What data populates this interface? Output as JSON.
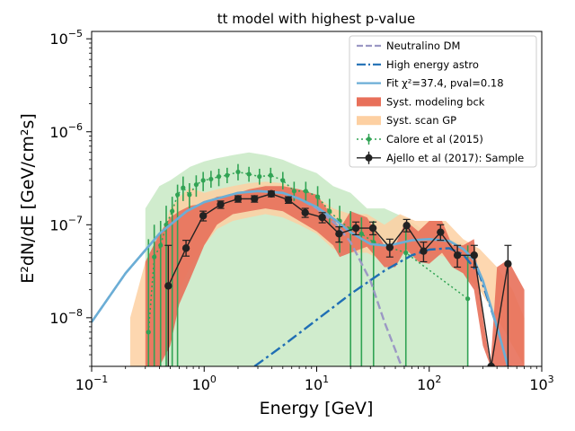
{
  "chart_data": {
    "type": "line",
    "title": "tt model with highest p-value",
    "xlabel": "Energy [GeV]",
    "ylabel": "E²dN/dE [GeV/cm²s]",
    "xscale": "log",
    "yscale": "log",
    "xlim": [
      0.1,
      1000
    ],
    "ylim": [
      3e-09,
      1.2e-05
    ],
    "x_ticks": [
      {
        "value": 0.1,
        "base": "10",
        "exp": "−1"
      },
      {
        "value": 1,
        "base": "10",
        "exp": "0"
      },
      {
        "value": 10,
        "base": "10",
        "exp": "1"
      },
      {
        "value": 100,
        "base": "10",
        "exp": "2"
      },
      {
        "value": 1000,
        "base": "10",
        "exp": "3"
      }
    ],
    "y_ticks": [
      {
        "value": 1e-08,
        "base": "10",
        "exp": "−8"
      },
      {
        "value": 1e-07,
        "base": "10",
        "exp": "−7"
      },
      {
        "value": 1e-06,
        "base": "10",
        "exp": "−6"
      },
      {
        "value": 1e-05,
        "base": "10",
        "exp": "−5"
      }
    ],
    "legend": {
      "position": "top-right",
      "entries": [
        {
          "label": "Neutralino DM",
          "color": "#9b98c4",
          "style": "dashed-line"
        },
        {
          "label": "High energy astro",
          "color": "#1f6eb4",
          "style": "dashdot-line"
        },
        {
          "label": "Fit χ²=37.4, pval=0.18",
          "color": "#6baed6",
          "style": "solid-line"
        },
        {
          "label": "Syst. modeling bck",
          "color": "#e8705a",
          "style": "patch"
        },
        {
          "label": "Syst. scan GP",
          "color": "#fdd0a2",
          "style": "patch"
        },
        {
          "label": "Calore et al (2015)",
          "color": "#31a354",
          "style": "dotted-errorbar"
        },
        {
          "label": "Ajello et al (2017): Sample",
          "color": "#222222",
          "style": "errorbar"
        }
      ]
    },
    "series": [
      {
        "name": "Neutralino DM",
        "color": "#9b98c4",
        "x": [
          0.1,
          0.2,
          0.4,
          0.7,
          1.0,
          2.0,
          3.0,
          5.0,
          7.0,
          10.0,
          15.0,
          20.0,
          30.0,
          40.0,
          50.0,
          55.0,
          60.0
        ],
        "y": [
          9e-09,
          3e-08,
          8e-08,
          1.4e-07,
          1.75e-07,
          2.2e-07,
          2.3e-07,
          2.2e-07,
          1.9e-07,
          1.5e-07,
          1e-07,
          6.5e-08,
          2.5e-08,
          9e-09,
          4.5e-09,
          3.3e-09,
          3e-09
        ]
      },
      {
        "name": "High energy astro",
        "color": "#1f6eb4",
        "x": [
          2.8,
          5,
          10,
          20,
          40,
          70,
          100,
          150,
          200,
          280,
          400
        ],
        "y": [
          3e-09,
          5e-09,
          9.5e-09,
          1.8e-08,
          3.2e-08,
          4.7e-08,
          5.4e-08,
          5.6e-08,
          4.8e-08,
          2.9e-08,
          8e-09
        ]
      },
      {
        "name": "Fit",
        "color": "#6baed6",
        "x": [
          0.1,
          0.2,
          0.4,
          0.7,
          1.0,
          2.0,
          3.0,
          5.0,
          7.0,
          10.0,
          15.0,
          20.0,
          30.0,
          40.0,
          50.0,
          70.0,
          100.0,
          150.0,
          200.0,
          250.0,
          300.0,
          400.0,
          500.0
        ],
        "y": [
          9e-09,
          3e-08,
          8e-08,
          1.4e-07,
          1.75e-07,
          2.2e-07,
          2.3e-07,
          2.2e-07,
          1.9e-07,
          1.55e-07,
          1.1e-07,
          8.3e-08,
          6.2e-08,
          6e-08,
          6.2e-08,
          6.8e-08,
          7e-08,
          6.7e-08,
          5.5e-08,
          4.2e-08,
          2.5e-08,
          8e-09,
          3e-09
        ]
      }
    ],
    "bands": [
      {
        "name": "Syst. scan GP",
        "color": "#fdd0a2",
        "x": [
          0.22,
          0.3,
          0.4,
          0.5,
          0.6,
          0.75,
          1.0,
          1.3,
          1.8,
          2.5,
          3.5,
          5.0,
          7.0,
          10.0,
          14.0,
          20.0,
          28.0,
          40.0,
          55.0,
          75.0,
          100.0,
          140.0,
          200.0,
          280.0,
          400.0,
          550.0,
          700.0
        ],
        "lower": [
          3e-09,
          3e-09,
          6e-09,
          1.2e-08,
          2e-08,
          3.5e-08,
          6e-08,
          9e-08,
          1.1e-07,
          1.2e-07,
          1.3e-07,
          1.2e-07,
          1e-07,
          8e-08,
          5.5e-08,
          5e-08,
          5e-08,
          4e-08,
          5e-08,
          5e-08,
          5e-08,
          4.5e-08,
          3e-08,
          2e-08,
          1e-08,
          5e-09,
          3e-09
        ],
        "upper": [
          1e-08,
          4e-08,
          6e-08,
          1.5e-07,
          2e-07,
          2.5e-07,
          2.2e-07,
          2.4e-07,
          2.6e-07,
          2.8e-07,
          2.9e-07,
          2.8e-07,
          2.3e-07,
          2e-07,
          1.5e-07,
          1.3e-07,
          1.3e-07,
          1e-07,
          1.3e-07,
          1.1e-07,
          1.1e-07,
          1.1e-07,
          7e-08,
          5.5e-08,
          3.5e-08,
          2e-08,
          1e-08
        ]
      },
      {
        "name": "Syst. modeling bck",
        "color": "#e8705a",
        "x": [
          0.3,
          0.4,
          0.5,
          0.6,
          0.75,
          1.0,
          1.3,
          1.8,
          2.5,
          3.5,
          5.0,
          7.0,
          10.0,
          14.0,
          16.0,
          20.0,
          28.0,
          40.0,
          50.0,
          62.0,
          80.0,
          100.0,
          130.0,
          160.0,
          200.0,
          250.0,
          300.0,
          350.0,
          400.0,
          500.0,
          700.0
        ],
        "lower": [
          3e-09,
          3e-09,
          5e-09,
          1.4e-08,
          2.6e-08,
          6e-08,
          1e-07,
          1.3e-07,
          1.4e-07,
          1.5e-07,
          1.4e-07,
          1.1e-07,
          8.5e-08,
          6e-08,
          4.5e-08,
          5e-08,
          5.8e-08,
          3.5e-08,
          3.5e-08,
          5.5e-08,
          4e-08,
          3.8e-08,
          5e-08,
          3.5e-08,
          3e-08,
          2e-08,
          5e-09,
          3e-09,
          3e-09,
          3e-09,
          3e-09
        ],
        "upper": [
          4e-08,
          8e-08,
          1.2e-07,
          1.4e-07,
          1.6e-07,
          1.7e-07,
          2e-07,
          2.1e-07,
          2.4e-07,
          2.6e-07,
          2.6e-07,
          2.4e-07,
          2.1e-07,
          1.2e-07,
          9e-08,
          1.4e-07,
          1.2e-07,
          6e-08,
          6e-08,
          1.1e-07,
          8.5e-08,
          1.1e-07,
          1.1e-07,
          6e-08,
          6e-08,
          7e-08,
          1e-08,
          3e-09,
          3.5e-08,
          4.2e-08,
          2e-08
        ]
      }
    ],
    "calore_band": {
      "name": "Calore et al (2015) envelope",
      "color": "#a1d99b",
      "x": [
        0.3,
        0.4,
        0.5,
        0.6,
        0.75,
        1.0,
        1.3,
        1.8,
        2.5,
        3.5,
        5.0,
        7.0,
        10.0,
        14.0,
        20.0,
        28.0,
        40.0,
        60.0,
        100.0,
        150.0,
        220.0
      ],
      "lower": [
        3e-09,
        3e-09,
        3e-09,
        3e-09,
        3e-09,
        3e-09,
        3e-09,
        3e-09,
        3e-09,
        3e-09,
        3e-09,
        3e-09,
        3e-09,
        3e-09,
        3e-09,
        3e-09,
        3e-09,
        3e-09,
        3e-09,
        3e-09,
        3e-09
      ],
      "upper": [
        1.5e-07,
        2.6e-07,
        3e-07,
        3.5e-07,
        4.2e-07,
        4.8e-07,
        5.2e-07,
        5.6e-07,
        6e-07,
        5.6e-07,
        5e-07,
        4.2e-07,
        3.6e-07,
        2.6e-07,
        2.2e-07,
        1.5e-07,
        1.5e-07,
        1.2e-07,
        8e-08,
        7e-08,
        6e-08
      ]
    },
    "calore_points": {
      "name": "Calore et al (2015)",
      "color": "#31a354",
      "points": [
        {
          "x": 0.32,
          "y": 7e-09,
          "lo": 3e-09,
          "hi": 7e-08
        },
        {
          "x": 0.36,
          "y": 4.5e-08,
          "lo": 3e-09,
          "hi": 1e-07
        },
        {
          "x": 0.41,
          "y": 6e-08,
          "lo": 3e-09,
          "hi": 1.1e-07
        },
        {
          "x": 0.46,
          "y": 1e-07,
          "lo": 3e-09,
          "hi": 1.6e-07
        },
        {
          "x": 0.52,
          "y": 1.4e-07,
          "lo": 3e-09,
          "hi": 2e-07
        },
        {
          "x": 0.58,
          "y": 2.1e-07,
          "lo": 3e-09,
          "hi": 2.7e-07
        },
        {
          "x": 0.65,
          "y": 2.5e-07,
          "lo": 1.8e-07,
          "hi": 3.3e-07
        },
        {
          "x": 0.74,
          "y": 2.1e-07,
          "lo": 1.5e-07,
          "hi": 2.8e-07
        },
        {
          "x": 0.85,
          "y": 2.7e-07,
          "lo": 2e-07,
          "hi": 3.4e-07
        },
        {
          "x": 0.98,
          "y": 3e-07,
          "lo": 2.3e-07,
          "hi": 3.7e-07
        },
        {
          "x": 1.15,
          "y": 3.1e-07,
          "lo": 2.5e-07,
          "hi": 3.8e-07
        },
        {
          "x": 1.35,
          "y": 3.3e-07,
          "lo": 2.6e-07,
          "hi": 4e-07
        },
        {
          "x": 1.6,
          "y": 3.4e-07,
          "lo": 2.8e-07,
          "hi": 4.1e-07
        },
        {
          "x": 2.0,
          "y": 3.7e-07,
          "lo": 3e-07,
          "hi": 4.5e-07
        },
        {
          "x": 2.5,
          "y": 3.5e-07,
          "lo": 2.9e-07,
          "hi": 4.2e-07
        },
        {
          "x": 3.1,
          "y": 3.3e-07,
          "lo": 2.7e-07,
          "hi": 4e-07
        },
        {
          "x": 3.9,
          "y": 3.4e-07,
          "lo": 2.8e-07,
          "hi": 4.1e-07
        },
        {
          "x": 5.0,
          "y": 3e-07,
          "lo": 2.4e-07,
          "hi": 3.7e-07
        },
        {
          "x": 6.3,
          "y": 2.3e-07,
          "lo": 1.8e-07,
          "hi": 2.9e-07
        },
        {
          "x": 8.0,
          "y": 2.3e-07,
          "lo": 1.8e-07,
          "hi": 2.9e-07
        },
        {
          "x": 10.2,
          "y": 2e-07,
          "lo": 1.5e-07,
          "hi": 2.6e-07
        },
        {
          "x": 13.0,
          "y": 1.4e-07,
          "lo": 1e-07,
          "hi": 1.9e-07
        },
        {
          "x": 16.0,
          "y": 1.1e-07,
          "lo": 5e-08,
          "hi": 1.6e-07
        },
        {
          "x": 20.0,
          "y": 9e-08,
          "lo": 3e-09,
          "hi": 1.4e-07
        },
        {
          "x": 25.0,
          "y": 8e-08,
          "lo": 3e-09,
          "hi": 1.2e-07
        },
        {
          "x": 32.0,
          "y": 6.5e-08,
          "lo": 3e-09,
          "hi": 1.1e-07
        },
        {
          "x": 62.0,
          "y": 5e-08,
          "lo": 3e-09,
          "hi": 1e-07
        },
        {
          "x": 220.0,
          "y": 1.6e-08,
          "lo": 3e-09,
          "hi": 6e-08
        }
      ]
    },
    "ajello_points": {
      "name": "Ajello et al (2017): Sample",
      "color": "#222222",
      "points": [
        {
          "x": 0.48,
          "y": 2.2e-08,
          "lo": 3e-09,
          "hi": 6e-08
        },
        {
          "x": 0.69,
          "y": 5.6e-08,
          "lo": 4.6e-08,
          "hi": 6.8e-08
        },
        {
          "x": 0.98,
          "y": 1.25e-07,
          "lo": 1.1e-07,
          "hi": 1.4e-07
        },
        {
          "x": 1.4,
          "y": 1.65e-07,
          "lo": 1.5e-07,
          "hi": 1.8e-07
        },
        {
          "x": 2.0,
          "y": 1.9e-07,
          "lo": 1.75e-07,
          "hi": 2.05e-07
        },
        {
          "x": 2.8,
          "y": 1.9e-07,
          "lo": 1.75e-07,
          "hi": 2.05e-07
        },
        {
          "x": 3.95,
          "y": 2.15e-07,
          "lo": 2e-07,
          "hi": 2.3e-07
        },
        {
          "x": 5.6,
          "y": 1.85e-07,
          "lo": 1.7e-07,
          "hi": 2e-07
        },
        {
          "x": 7.9,
          "y": 1.35e-07,
          "lo": 1.2e-07,
          "hi": 1.5e-07
        },
        {
          "x": 11.2,
          "y": 1.2e-07,
          "lo": 1.05e-07,
          "hi": 1.35e-07
        },
        {
          "x": 15.8,
          "y": 8e-08,
          "lo": 6.5e-08,
          "hi": 9.5e-08
        },
        {
          "x": 22.3,
          "y": 9.2e-08,
          "lo": 7.8e-08,
          "hi": 1.07e-07
        },
        {
          "x": 31.6,
          "y": 9.2e-08,
          "lo": 7.8e-08,
          "hi": 1.07e-07
        },
        {
          "x": 44.6,
          "y": 5.7e-08,
          "lo": 4.5e-08,
          "hi": 7e-08
        },
        {
          "x": 63.0,
          "y": 9.8e-08,
          "lo": 8.4e-08,
          "hi": 1.14e-07
        },
        {
          "x": 89.0,
          "y": 5.2e-08,
          "lo": 4e-08,
          "hi": 6.5e-08
        },
        {
          "x": 126.0,
          "y": 8.3e-08,
          "lo": 6.8e-08,
          "hi": 1e-07
        },
        {
          "x": 178.0,
          "y": 4.7e-08,
          "lo": 3.5e-08,
          "hi": 6e-08
        },
        {
          "x": 251.0,
          "y": 4.7e-08,
          "lo": 3.5e-08,
          "hi": 6e-08
        },
        {
          "x": 355.0,
          "y": 3e-09,
          "lo": 3e-09,
          "hi": 3e-09
        },
        {
          "x": 501.0,
          "y": 3.8e-08,
          "lo": 3e-09,
          "hi": 6e-08
        }
      ]
    }
  }
}
